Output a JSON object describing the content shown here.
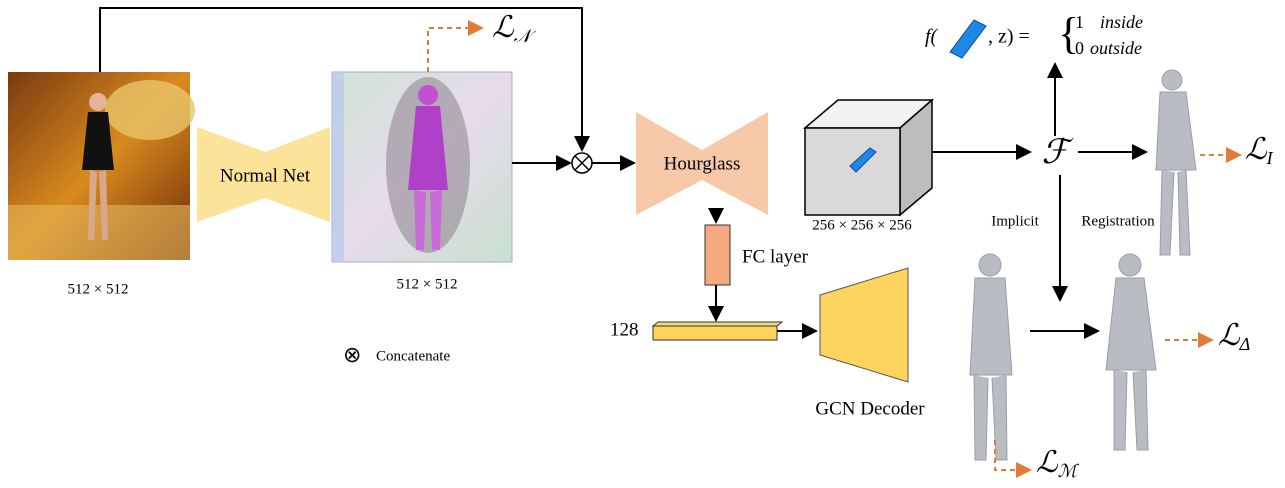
{
  "input_image": {
    "size": "512 × 512"
  },
  "normal_net": {
    "label": "Normal Net"
  },
  "normal_map": {
    "size": "512 × 512"
  },
  "concatenate": {
    "symbol": "⊗",
    "label": "Concatenate"
  },
  "hourglass": {
    "label": "Hourglass"
  },
  "volume": {
    "size": "256 × 256 × 256"
  },
  "fc_layer": {
    "label": "FC layer"
  },
  "latent": {
    "label": "128"
  },
  "gcn_decoder": {
    "label": "GCN Decoder"
  },
  "implicit_function": {
    "symbol": "ℱ",
    "left_label": "Implicit",
    "right_label": "Registration"
  },
  "equation": {
    "prefix": "f(",
    "middle": ",  z) =",
    "brace": "{",
    "one": "1",
    "inside": "inside",
    "zero": "0",
    "outside": "outside"
  },
  "losses": {
    "normal": {
      "symbol": "ℒ",
      "subscript": "𝒩"
    },
    "implicit": {
      "symbol": "ℒ",
      "subscript": "I"
    },
    "delta": {
      "symbol": "ℒ",
      "subscript": "Δ"
    },
    "mesh": {
      "symbol": "ℒ",
      "subscript": "ℳ"
    }
  }
}
